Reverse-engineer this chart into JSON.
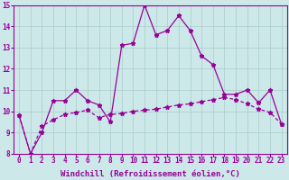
{
  "xlabel": "Windchill (Refroidissement éolien,°C)",
  "x": [
    0,
    1,
    2,
    3,
    4,
    5,
    6,
    7,
    8,
    9,
    10,
    11,
    12,
    13,
    14,
    15,
    16,
    17,
    18,
    19,
    20,
    21,
    22,
    23
  ],
  "line1": [
    9.8,
    8.0,
    9.0,
    10.5,
    10.5,
    11.0,
    10.5,
    10.3,
    9.5,
    13.1,
    13.2,
    15.0,
    13.6,
    13.8,
    14.5,
    13.8,
    12.6,
    12.2,
    10.8,
    10.8,
    11.0,
    10.4,
    11.0,
    9.4
  ],
  "line2": [
    9.8,
    8.0,
    9.3,
    9.6,
    9.85,
    9.95,
    10.05,
    9.7,
    9.85,
    9.9,
    10.0,
    10.05,
    10.1,
    10.2,
    10.3,
    10.35,
    10.45,
    10.55,
    10.65,
    10.55,
    10.35,
    10.1,
    9.95,
    9.4
  ],
  "line_color": "#990099",
  "bg_color": "#cce8e8",
  "grid_color": "#aacccc",
  "ylim": [
    8,
    15
  ],
  "xlim_min": -0.5,
  "xlim_max": 23.5,
  "yticks": [
    8,
    9,
    10,
    11,
    12,
    13,
    14,
    15
  ],
  "xticks": [
    0,
    1,
    2,
    3,
    4,
    5,
    6,
    7,
    8,
    9,
    10,
    11,
    12,
    13,
    14,
    15,
    16,
    17,
    18,
    19,
    20,
    21,
    22,
    23
  ],
  "tick_fontsize": 5.5,
  "xlabel_fontsize": 6.5,
  "marker": "*",
  "linewidth": 0.9,
  "markersize": 3.5
}
